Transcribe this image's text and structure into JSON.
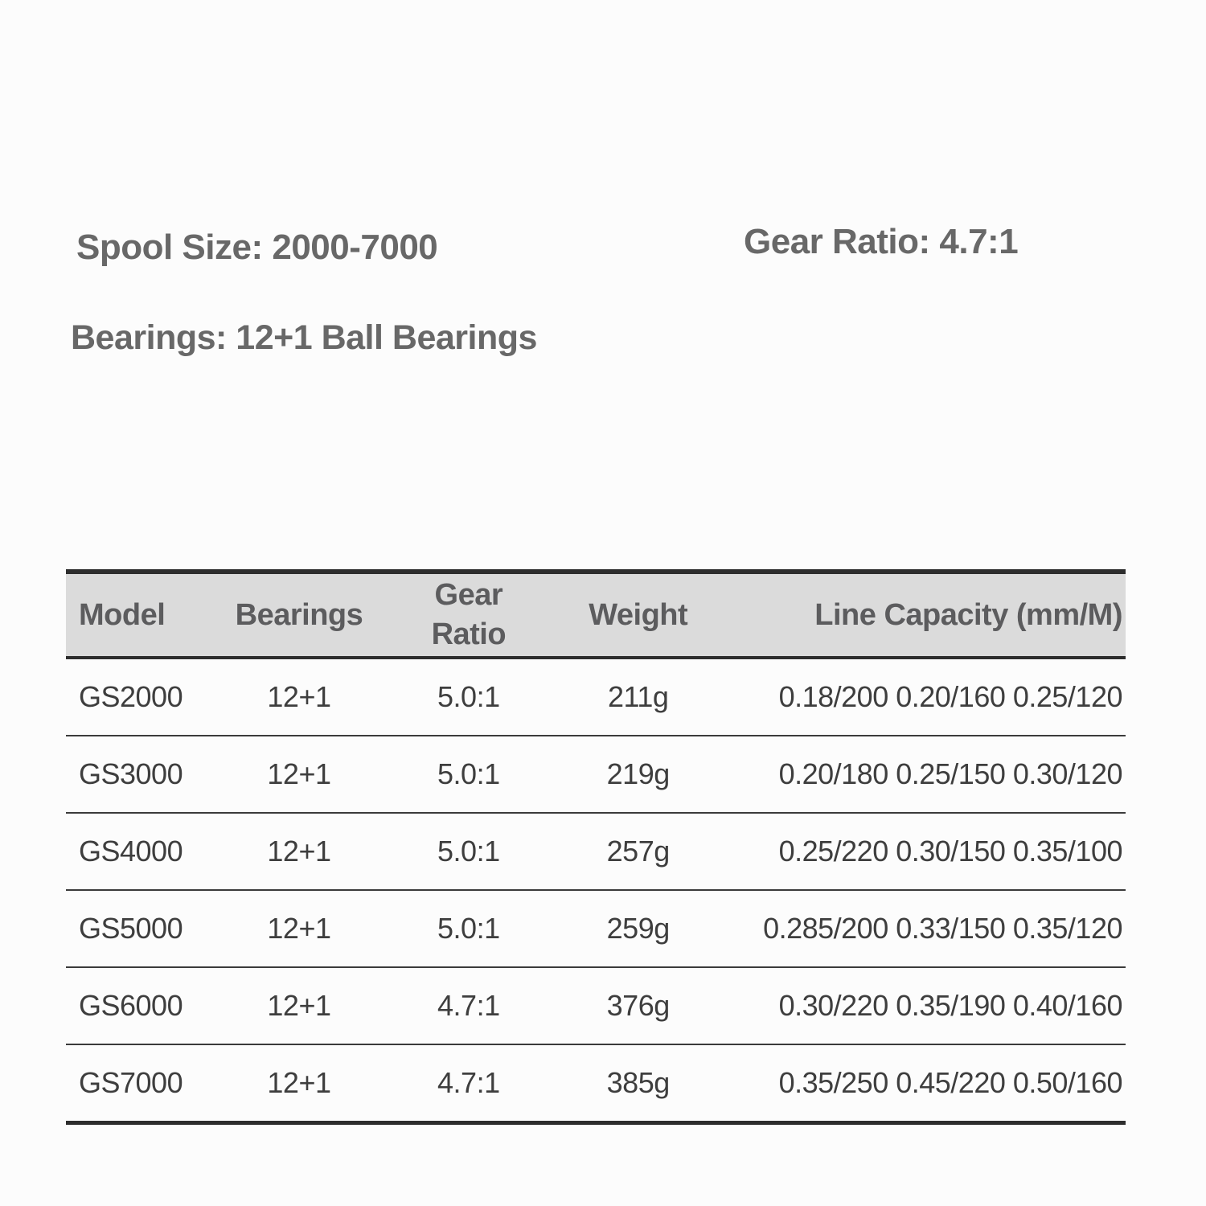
{
  "specs": {
    "spool_size": "Spool Size: 2000-7000",
    "gear_ratio": "Gear Ratio: 4.7:1",
    "bearings": "Bearings: 12+1 Ball Bearings"
  },
  "table": {
    "columns": [
      "Model",
      "Bearings",
      "Gear Ratio",
      "Weight",
      "Line Capacity (mm/M)"
    ],
    "rows": [
      [
        "GS2000",
        "12+1",
        "5.0:1",
        "211g",
        "0.18/200 0.20/160 0.25/120"
      ],
      [
        "GS3000",
        "12+1",
        "5.0:1",
        "219g",
        "0.20/180 0.25/150 0.30/120"
      ],
      [
        "GS4000",
        "12+1",
        "5.0:1",
        "257g",
        "0.25/220 0.30/150 0.35/100"
      ],
      [
        "GS5000",
        "12+1",
        "5.0:1",
        "259g",
        "0.285/200 0.33/150 0.35/120"
      ],
      [
        "GS6000",
        "12+1",
        "4.7:1",
        "376g",
        "0.30/220 0.35/190 0.40/160"
      ],
      [
        "GS7000",
        "12+1",
        "4.7:1",
        "385g",
        "0.35/250 0.45/220 0.50/160"
      ]
    ]
  },
  "colors": {
    "page_background": "#fcfcfc",
    "header_background": "#dbdbdb",
    "header_text": "#5c5c5e",
    "body_text": "#3e3e3e",
    "label_text": "#686868",
    "rule_dark": "#2d2d2d",
    "row_line": "#3b3b3b"
  }
}
